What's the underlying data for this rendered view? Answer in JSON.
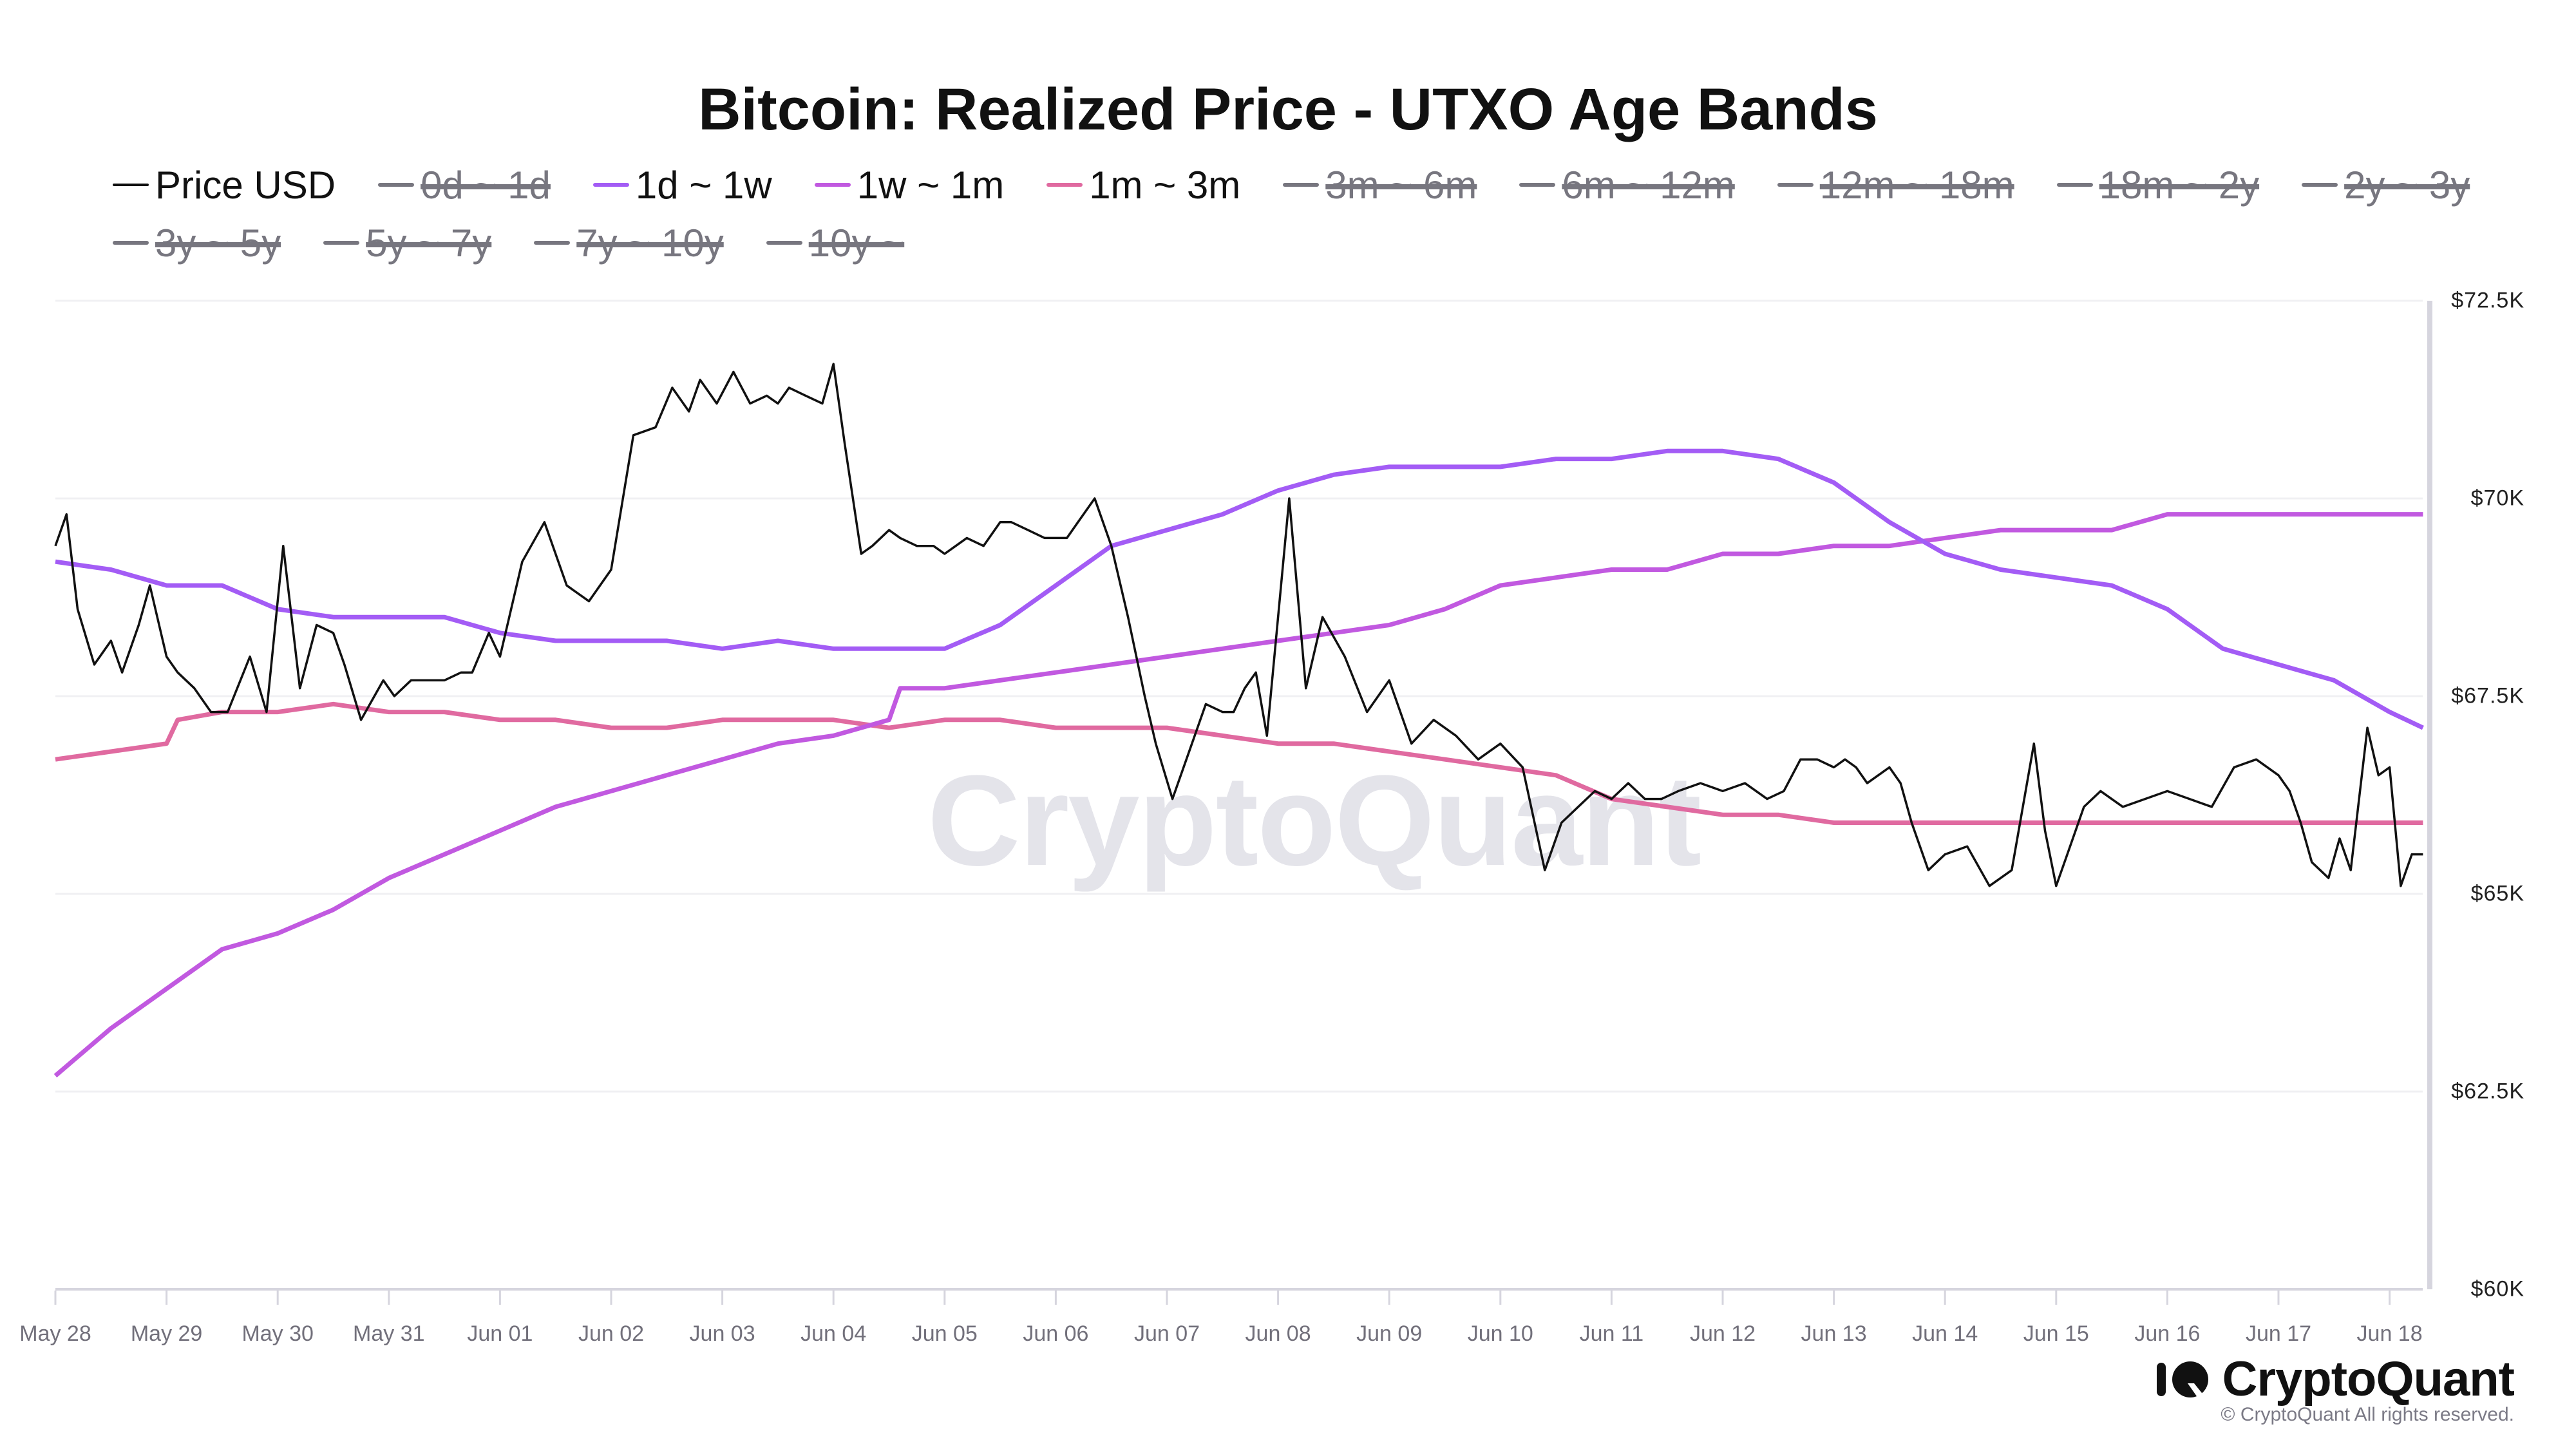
{
  "title": "Bitcoin: Realized Price - UTXO Age Bands",
  "legend": [
    {
      "label": "Price USD",
      "color": "#111111",
      "active": true
    },
    {
      "label": "0d ~ 1d",
      "color": "#77767f",
      "active": false
    },
    {
      "label": "1d ~ 1w",
      "color": "#a35cf5",
      "active": true
    },
    {
      "label": "1w ~ 1m",
      "color": "#c159e0",
      "active": true
    },
    {
      "label": "1m ~ 3m",
      "color": "#e06aa0",
      "active": true
    },
    {
      "label": "3m ~ 6m",
      "color": "#77767f",
      "active": false
    },
    {
      "label": "6m ~ 12m",
      "color": "#77767f",
      "active": false
    },
    {
      "label": "12m ~ 18m",
      "color": "#77767f",
      "active": false
    },
    {
      "label": "18m ~ 2y",
      "color": "#77767f",
      "active": false
    },
    {
      "label": "2y ~ 3y",
      "color": "#77767f",
      "active": false
    },
    {
      "label": "3y ~ 5y",
      "color": "#77767f",
      "active": false
    },
    {
      "label": "5y ~ 7y",
      "color": "#77767f",
      "active": false
    },
    {
      "label": "7y ~ 10y",
      "color": "#77767f",
      "active": false
    },
    {
      "label": "10y ~",
      "color": "#77767f",
      "active": false
    }
  ],
  "y_axis": {
    "ticks": [
      "$72.5K",
      "$70K",
      "$67.5K",
      "$65K",
      "$62.5K",
      "$60K"
    ]
  },
  "x_axis": {
    "ticks": [
      "May 28",
      "May 29",
      "May 30",
      "May 31",
      "Jun 01",
      "Jun 02",
      "Jun 03",
      "Jun 04",
      "Jun 05",
      "Jun 06",
      "Jun 07",
      "Jun 08",
      "Jun 09",
      "Jun 10",
      "Jun 11",
      "Jun 12",
      "Jun 13",
      "Jun 14",
      "Jun 15",
      "Jun 16",
      "Jun 17",
      "Jun 18"
    ]
  },
  "watermark": "CryptoQuant",
  "brand": {
    "name": "CryptoQuant",
    "copyright": "© CryptoQuant All rights reserved."
  },
  "chart_data": {
    "type": "line",
    "title": "Bitcoin: Realized Price - UTXO Age Bands",
    "xlabel": "",
    "ylabel": "",
    "ylim": [
      60000,
      72500
    ],
    "y_ticks": [
      60000,
      62500,
      65000,
      67500,
      70000,
      72500
    ],
    "grid": true,
    "legend_position": "top",
    "x_unit": "days since May 28 (0 = May 28, 21 = Jun 18)",
    "series": [
      {
        "name": "Price USD",
        "color": "#111111",
        "x": [
          0,
          0.1,
          0.2,
          0.35,
          0.5,
          0.6,
          0.75,
          0.85,
          1.0,
          1.1,
          1.25,
          1.4,
          1.55,
          1.75,
          1.9,
          2.05,
          2.2,
          2.35,
          2.5,
          2.6,
          2.75,
          2.95,
          3.05,
          3.2,
          3.35,
          3.5,
          3.65,
          3.75,
          3.9,
          4.0,
          4.2,
          4.4,
          4.6,
          4.8,
          5.0,
          5.2,
          5.4,
          5.55,
          5.7,
          5.8,
          5.95,
          6.1,
          6.25,
          6.4,
          6.5,
          6.6,
          6.75,
          6.9,
          7.0,
          7.1,
          7.25,
          7.35,
          7.5,
          7.6,
          7.75,
          7.9,
          8.0,
          8.1,
          8.2,
          8.35,
          8.5,
          8.6,
          8.75,
          8.9,
          9.0,
          9.1,
          9.2,
          9.35,
          9.5,
          9.65,
          9.8,
          9.9,
          10.05,
          10.2,
          10.35,
          10.5,
          10.6,
          10.7,
          10.8,
          10.9,
          11.0,
          11.1,
          11.25,
          11.4,
          11.6,
          11.8,
          12.0,
          12.2,
          12.4,
          12.6,
          12.8,
          13.0,
          13.2,
          13.4,
          13.55,
          13.7,
          13.85,
          14.0,
          14.15,
          14.3,
          14.45,
          14.6,
          14.8,
          15.0,
          15.2,
          15.4,
          15.55,
          15.7,
          15.85,
          16.0,
          16.1,
          16.2,
          16.3,
          16.4,
          16.5,
          16.6,
          16.7,
          16.85,
          17.0,
          17.2,
          17.4,
          17.6,
          17.8,
          17.9,
          18.0,
          18.1,
          18.25,
          18.4,
          18.6,
          18.8,
          19.0,
          19.2,
          19.4,
          19.6,
          19.8,
          20.0,
          20.1,
          20.2,
          20.3,
          20.45,
          20.55,
          20.65,
          20.8,
          20.9,
          21.0,
          21.1,
          21.2,
          21.3
        ],
        "values": [
          69400,
          69800,
          68600,
          67900,
          68200,
          67800,
          68400,
          68900,
          68000,
          67800,
          67600,
          67300,
          67300,
          68000,
          67300,
          69400,
          67600,
          68400,
          68300,
          67900,
          67200,
          67700,
          67500,
          67700,
          67700,
          67700,
          67800,
          67800,
          68300,
          68000,
          69200,
          69700,
          68900,
          68700,
          69100,
          70800,
          70900,
          71400,
          71100,
          71500,
          71200,
          71600,
          71200,
          71300,
          71200,
          71400,
          71300,
          71200,
          71700,
          70700,
          69300,
          69400,
          69600,
          69500,
          69400,
          69400,
          69300,
          69400,
          69500,
          69400,
          69700,
          69700,
          69600,
          69500,
          69500,
          69500,
          69700,
          70000,
          69400,
          68500,
          67500,
          66900,
          66200,
          66800,
          67400,
          67300,
          67300,
          67600,
          67800,
          67000,
          68500,
          70000,
          67600,
          68500,
          68000,
          67300,
          67700,
          66900,
          67200,
          67000,
          66700,
          66900,
          66600,
          65300,
          65900,
          66100,
          66300,
          66200,
          66400,
          66200,
          66200,
          66300,
          66400,
          66300,
          66400,
          66200,
          66300,
          66700,
          66700,
          66600,
          66700,
          66600,
          66400,
          66500,
          66600,
          66400,
          65900,
          65300,
          65500,
          65600,
          65100,
          65300,
          66900,
          65800,
          65100,
          65500,
          66100,
          66300,
          66100,
          66200,
          66300,
          66200,
          66100,
          66600,
          66700,
          66500,
          66300,
          65900,
          65400,
          65200,
          65700,
          65300,
          67100,
          66500,
          66600,
          65100,
          65500,
          65500
        ]
      },
      {
        "name": "1d ~ 1w",
        "color": "#a35cf5",
        "x": [
          0,
          0.5,
          1.0,
          1.5,
          2.0,
          2.5,
          3.0,
          3.5,
          4.0,
          4.5,
          5.0,
          5.5,
          6.0,
          6.5,
          7.0,
          7.5,
          8.0,
          8.5,
          9.0,
          9.5,
          10.0,
          10.5,
          11.0,
          11.5,
          12.0,
          12.5,
          13.0,
          13.5,
          14.0,
          14.5,
          15.0,
          15.5,
          16.0,
          16.5,
          17.0,
          17.5,
          18.0,
          18.5,
          19.0,
          19.5,
          20.0,
          20.5,
          21.0,
          21.3
        ],
        "values": [
          69200,
          69100,
          68900,
          68900,
          68600,
          68500,
          68500,
          68500,
          68300,
          68200,
          68200,
          68200,
          68100,
          68200,
          68100,
          68100,
          68100,
          68400,
          68900,
          69400,
          69600,
          69800,
          70100,
          70300,
          70400,
          70400,
          70400,
          70500,
          70500,
          70600,
          70600,
          70500,
          70200,
          69700,
          69300,
          69100,
          69000,
          68900,
          68600,
          68100,
          67900,
          67700,
          67300,
          67100
        ]
      },
      {
        "name": "1w ~ 1m",
        "color": "#c159e0",
        "x": [
          0,
          0.5,
          1.0,
          1.5,
          2.0,
          2.5,
          3.0,
          3.5,
          4.0,
          4.5,
          5.0,
          5.5,
          6.0,
          6.5,
          7.0,
          7.5,
          7.6,
          8.0,
          8.5,
          9.0,
          9.5,
          10.0,
          10.5,
          11.0,
          11.5,
          12.0,
          12.5,
          13.0,
          13.5,
          14.0,
          14.5,
          15.0,
          15.5,
          16.0,
          16.5,
          17.0,
          17.5,
          18.0,
          18.5,
          19.0,
          19.5,
          20.0,
          20.5,
          21.0,
          21.3
        ],
        "values": [
          62700,
          63300,
          63800,
          64300,
          64500,
          64800,
          65200,
          65500,
          65800,
          66100,
          66300,
          66500,
          66700,
          66900,
          67000,
          67200,
          67600,
          67600,
          67700,
          67800,
          67900,
          68000,
          68100,
          68200,
          68300,
          68400,
          68600,
          68900,
          69000,
          69100,
          69100,
          69300,
          69300,
          69400,
          69400,
          69500,
          69600,
          69600,
          69600,
          69800,
          69800,
          69800,
          69800,
          69800,
          69800
        ]
      },
      {
        "name": "1m ~ 3m",
        "color": "#e06aa0",
        "x": [
          0,
          0.5,
          1.0,
          1.1,
          1.5,
          2.0,
          2.5,
          3.0,
          3.5,
          4.0,
          4.5,
          5.0,
          5.5,
          6.0,
          6.5,
          7.0,
          7.5,
          8.0,
          8.5,
          9.0,
          9.5,
          10.0,
          10.5,
          11.0,
          11.5,
          12.0,
          12.5,
          13.0,
          13.5,
          14.0,
          14.5,
          15.0,
          15.5,
          16.0,
          16.5,
          17.0,
          17.5,
          18.0,
          18.5,
          19.0,
          19.5,
          20.0,
          20.5,
          21.0,
          21.3
        ],
        "values": [
          66700,
          66800,
          66900,
          67200,
          67300,
          67300,
          67400,
          67300,
          67300,
          67200,
          67200,
          67100,
          67100,
          67200,
          67200,
          67200,
          67100,
          67200,
          67200,
          67100,
          67100,
          67100,
          67000,
          66900,
          66900,
          66800,
          66700,
          66600,
          66500,
          66200,
          66100,
          66000,
          66000,
          65900,
          65900,
          65900,
          65900,
          65900,
          65900,
          65900,
          65900,
          65900,
          65900,
          65900,
          65900
        ]
      }
    ]
  }
}
